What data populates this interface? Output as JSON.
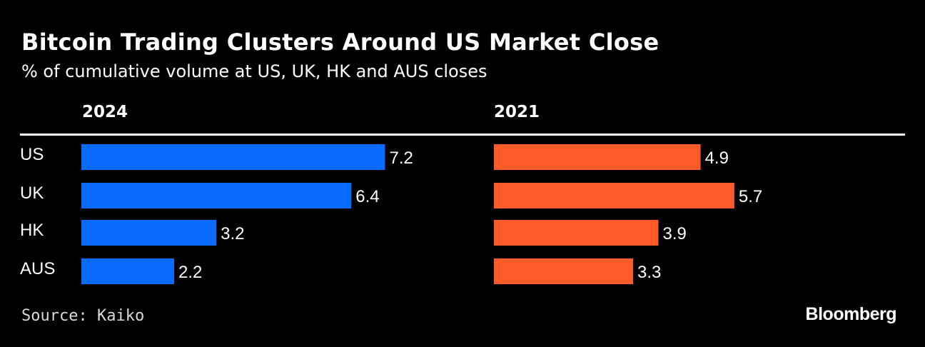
{
  "title": "Bitcoin Trading Clusters Around US Market Close",
  "subtitle": "% of cumulative volume at US, UK, HK and AUS closes",
  "source": "Source: Kaiko",
  "brand": "Bloomberg",
  "colors": {
    "series_2024": "#0a6cff",
    "series_2021": "#ff5a2a",
    "background": "#000000",
    "text": "#ffffff"
  },
  "chart_data": [
    {
      "type": "bar",
      "orientation": "horizontal",
      "title": "2024",
      "categories": [
        "US",
        "UK",
        "HK",
        "AUS"
      ],
      "values": [
        7.2,
        6.4,
        3.2,
        2.2
      ]
    },
    {
      "type": "bar",
      "orientation": "horizontal",
      "title": "2021",
      "categories": [
        "US",
        "UK",
        "HK",
        "AUS"
      ],
      "values": [
        4.9,
        5.7,
        3.9,
        3.3
      ]
    }
  ]
}
